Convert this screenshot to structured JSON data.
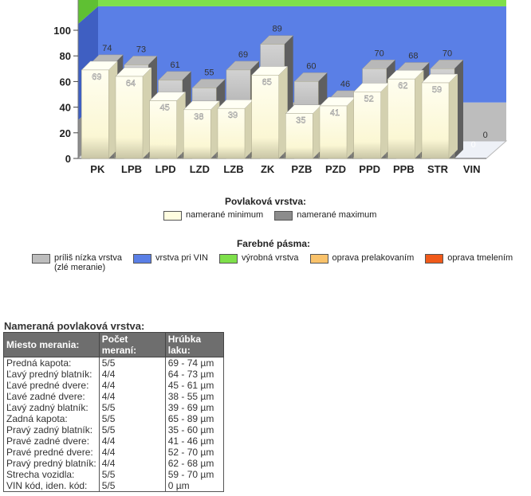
{
  "chart_data": {
    "type": "bar",
    "categories": [
      "PK",
      "LPB",
      "LPD",
      "LZD",
      "LZB",
      "ZK",
      "PZB",
      "PZD",
      "PPD",
      "PPB",
      "STR",
      "VIN"
    ],
    "series": [
      {
        "name": "namerané minimum",
        "color": "#fffde0",
        "values": [
          69,
          64,
          45,
          38,
          39,
          65,
          35,
          41,
          52,
          62,
          59,
          0
        ]
      },
      {
        "name": "namerané maximum",
        "color": "#8c8c8c",
        "values": [
          74,
          73,
          61,
          55,
          69,
          89,
          60,
          46,
          70,
          68,
          70,
          0
        ]
      }
    ],
    "ylim": [
      0,
      100
    ],
    "yticks": [
      0,
      20,
      40,
      60,
      80,
      100
    ],
    "bands": [
      {
        "label": "príliš nízka vrstva (zlé meranie)",
        "from": 0,
        "to": 30,
        "color": "#bdbdbd"
      },
      {
        "label": "vrstva pri VIN",
        "from": 30,
        "to": 105,
        "color": "#5a7fe6"
      },
      {
        "label": "výrobná vrstva",
        "from": 105,
        "to": 125,
        "color": "#7ee04a"
      },
      {
        "label": "oprava prelakovaním",
        "color": "#f9c26a"
      },
      {
        "label": "oprava tmelením",
        "color": "#f05a1a"
      }
    ]
  },
  "legend": {
    "series_title": "Povlaková vrstva:",
    "bands_title": "Farebné pásma:",
    "bands_line1": "príliš nízka vrstva",
    "bands_line2": "(zlé meranie)"
  },
  "measurements": {
    "title": "Nameraná povlaková vrstva:",
    "headers": [
      "Miesto merania:",
      "Počet meraní:",
      "Hrúbka laku:"
    ],
    "rows": [
      [
        "Predná kapota:",
        "5/5",
        "69 - 74 µm"
      ],
      [
        "Ľavý predný blatník:",
        "4/4",
        "64 - 73 µm"
      ],
      [
        "Ľavé predné dvere:",
        "4/4",
        "45 - 61 µm"
      ],
      [
        "Ľavé zadné dvere:",
        "4/4",
        "38 - 55 µm"
      ],
      [
        "Ľavý zadný blatník:",
        "5/5",
        "39 - 69 µm"
      ],
      [
        "Zadná kapota:",
        "5/5",
        "65 - 89 µm"
      ],
      [
        "Pravý zadný blatník:",
        "5/5",
        "35 - 60 µm"
      ],
      [
        "Pravé zadné dvere:",
        "4/4",
        "41 - 46 µm"
      ],
      [
        "Pravé predné dvere:",
        "4/4",
        "52 - 70 µm"
      ],
      [
        "Pravý predný blatník:",
        "4/4",
        "62 - 68 µm"
      ],
      [
        "Strecha vozidla:",
        "5/5",
        "59 - 70 µm"
      ],
      [
        "VIN kód, iden. kód:",
        "5/5",
        "0 µm"
      ]
    ]
  }
}
